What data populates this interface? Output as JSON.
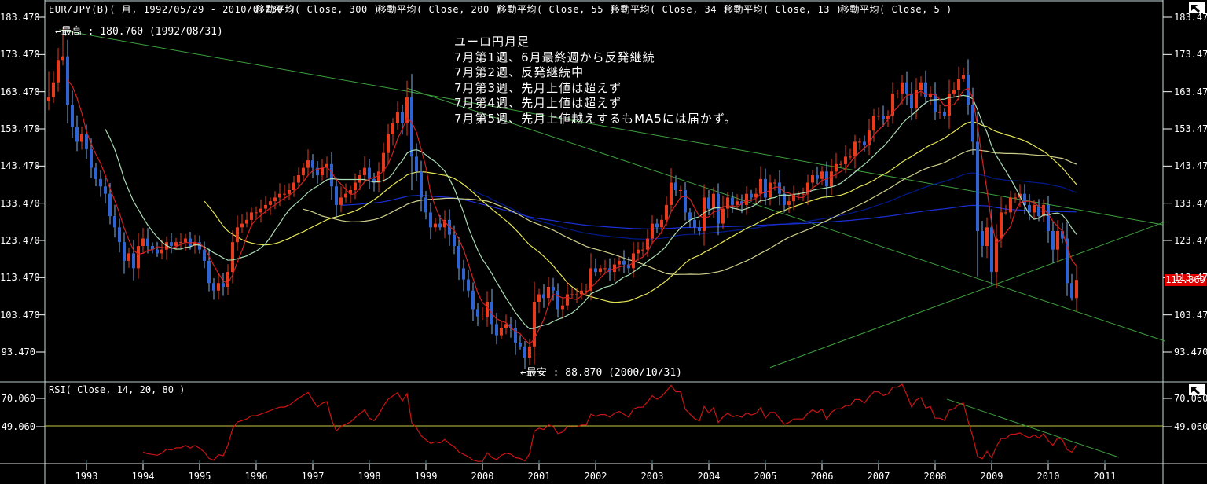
{
  "header": {
    "title": "EUR/JPY(B)( 月, 1992/05/29 - 2010/07/30 )",
    "ma_labels": [
      "移動平均( Close, 300 )",
      "移動平均( Close, 200 )",
      "移動平均( Close, 55 )",
      "移動平均( Close, 34 )",
      "移動平均( Close, 13 )",
      "移動平均( Close, 5 )"
    ]
  },
  "chart_data": {
    "type": "candlestick",
    "title": "EUR/JPY(B) monthly 1992/05-2010/07 with moving averages and RSI",
    "x_start": "1992-05",
    "x_end": "2010-07",
    "first_open": 161,
    "closes": [
      162,
      166,
      172,
      173,
      160,
      154,
      150,
      152,
      148,
      143,
      140,
      138,
      136,
      130,
      127,
      123,
      118,
      120,
      116,
      122,
      124,
      122,
      121,
      120,
      121,
      123,
      122,
      123,
      123,
      124,
      122,
      123,
      121,
      118,
      112,
      110,
      112,
      111,
      115,
      123,
      127,
      128,
      129,
      131,
      131,
      132,
      133,
      134,
      135,
      136,
      136,
      137,
      139,
      141,
      143,
      145,
      143,
      141,
      143,
      144,
      138,
      133,
      135,
      136,
      137,
      139,
      141,
      143,
      140,
      139,
      142,
      147,
      152,
      155,
      158,
      155,
      162,
      146,
      142,
      135,
      131,
      127,
      128,
      127,
      129,
      125,
      122,
      116,
      113,
      110,
      105,
      103,
      103,
      107,
      101,
      98,
      100,
      101,
      100,
      96,
      95,
      92,
      95,
      107,
      109,
      108,
      111,
      110,
      105,
      106,
      109,
      109,
      109,
      110,
      110,
      116,
      115,
      116,
      116,
      115,
      117,
      118,
      117,
      116,
      120,
      121,
      121,
      124,
      128,
      127,
      129,
      133,
      139,
      137,
      137,
      131,
      129,
      127,
      126,
      135,
      132,
      136,
      128,
      132,
      135,
      133,
      134,
      133,
      136,
      135,
      136,
      140,
      135,
      139,
      139,
      136,
      133,
      134,
      136,
      136,
      136,
      139,
      141,
      140,
      142,
      138,
      142,
      144,
      144,
      146,
      146,
      150,
      150,
      149,
      153,
      157,
      157,
      156,
      157,
      163,
      163,
      166,
      163,
      159,
      164,
      166,
      162,
      163,
      158,
      158,
      157,
      163,
      164,
      167,
      168,
      160,
      150,
      126,
      122,
      127,
      115,
      124,
      131,
      131,
      135,
      135,
      136,
      133,
      131,
      133,
      130,
      133,
      126,
      121,
      126,
      124,
      112,
      108,
      112.87
    ],
    "wick_overrides": {
      "0": {
        "low": 158.5,
        "high": 169
      },
      "3": {
        "high": 180.76
      },
      "76": {
        "high": 166.4
      },
      "77": {
        "low": 137
      },
      "101": {
        "low": 88.87
      },
      "182": {
        "high": 168.95
      },
      "194": {
        "high": 169.96
      },
      "197": {
        "low": 113.8
      },
      "200": {
        "low": 111.5
      },
      "217": {
        "low": 107.3
      }
    },
    "ma_periods": [
      5,
      13,
      34,
      55,
      200,
      300
    ],
    "y_axis_labels": [
      "183.470",
      "173.470",
      "163.470",
      "153.470",
      "143.470",
      "133.470",
      "123.470",
      "113.470",
      "103.470",
      "93.470"
    ],
    "x_axis_labels": [
      "1993",
      "1994",
      "1995",
      "1996",
      "1997",
      "1998",
      "1999",
      "2000",
      "2001",
      "2002",
      "2003",
      "2004",
      "2005",
      "2006",
      "2007",
      "2008",
      "2009",
      "2010",
      "2011"
    ],
    "current_price": "112.869",
    "high_annotation": "←最高 : 180.760 (1992/08/31)",
    "low_annotation": "←最安 : 88.870 (2000/10/31)",
    "notes": [
      "ユーロ円月足",
      "7月第1週、6月最終週から反発継続",
      "7月第2週、反発継続中",
      "7月第3週、先月上値は超えず",
      "7月第4週、先月上値は超えず",
      "7月第5週、先月上値越えするもMA5には届かず。"
    ],
    "rsi": {
      "label": "RSI( Close, 14, 20, 80 )",
      "period": 14,
      "levels": [
        20,
        80
      ],
      "axis_labels": [
        "70.060",
        "49.060"
      ],
      "mid_line_value": 49.06,
      "trend_line": {
        "from": [
          190.5,
          69.5
        ],
        "to": [
          227,
          26.3
        ]
      }
    },
    "trend_lines": [
      {
        "name": "resistance-from-1992-high",
        "from": [
          2.2,
          180.1
        ],
        "to": [
          236.3,
          127.7
        ]
      },
      {
        "name": "steep-resistance-from-1998-high",
        "from": [
          76,
          164.4
        ],
        "to": [
          236.8,
          96.4
        ]
      },
      {
        "name": "support-ascending",
        "from": [
          153,
          89.3
        ],
        "to": [
          236.8,
          128.5
        ]
      }
    ],
    "colors": {
      "up": "#e83b1e",
      "down": "#2f63d2",
      "down_wick": "#7fb4ea",
      "ma5": "#d42222",
      "ma13": "#aadcb4",
      "ma34": "#e6e655",
      "ma55": "#cfcf8a",
      "ma200": "#1c2fd6",
      "ma300": "#001a8c",
      "trend": "#3fa03f",
      "rsi_line": "#cc1414",
      "rsi_mid": "#c8c83c",
      "axis": "#c8dcdc",
      "price_box": "#e00000"
    }
  }
}
